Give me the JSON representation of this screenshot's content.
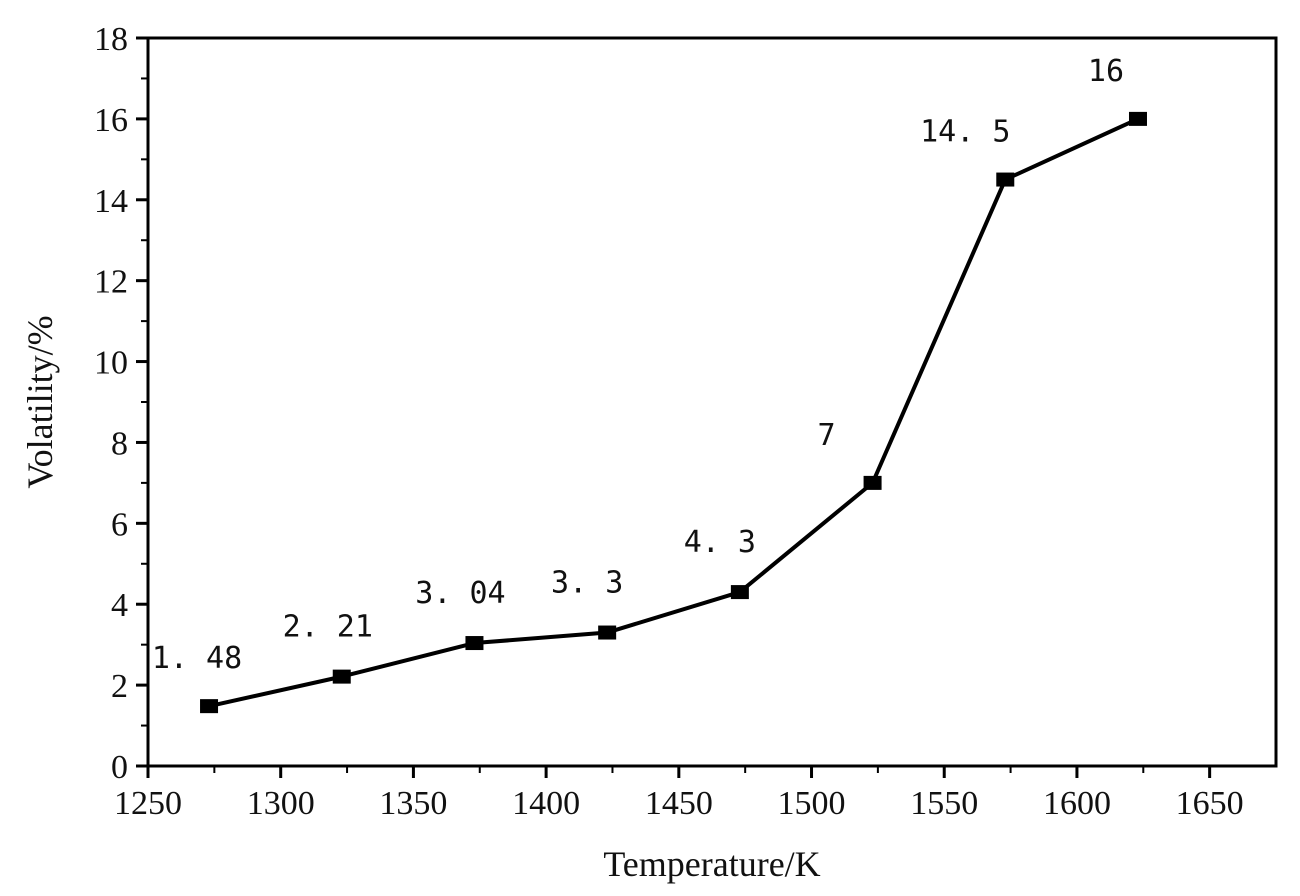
{
  "chart_data": {
    "type": "line",
    "xlabel": "Temperature/K",
    "ylabel": "Volatility/%",
    "xlim": [
      1250,
      1675
    ],
    "ylim": [
      0,
      18
    ],
    "x_ticks": [
      "1250",
      "1300",
      "1350",
      "1400",
      "1450",
      "1500",
      "1550",
      "1600",
      "1650"
    ],
    "y_ticks": [
      "0",
      "2",
      "4",
      "6",
      "8",
      "10",
      "12",
      "14",
      "16",
      "18"
    ],
    "grid": false,
    "series": [
      {
        "x": [
          1273,
          1323,
          1373,
          1423,
          1473,
          1523,
          1573,
          1623
        ],
        "y": [
          1.48,
          2.21,
          3.04,
          3.3,
          4.3,
          7,
          14.5,
          16
        ],
        "labels": [
          "1. 48",
          "2. 21",
          "3. 04",
          "3. 3",
          "4. 3",
          "7",
          "14. 5",
          "16"
        ],
        "color": "#000000",
        "marker": "square"
      }
    ]
  }
}
